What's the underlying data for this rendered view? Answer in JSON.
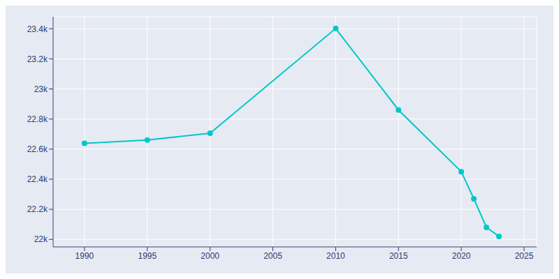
{
  "chart_data": {
    "type": "line",
    "x": [
      1990,
      1995,
      2000,
      2010,
      2015,
      2020,
      2021,
      2022,
      2023
    ],
    "values": [
      22638,
      22660,
      22706,
      23402,
      22860,
      22450,
      22270,
      22080,
      22020
    ],
    "color": "#00c8c8",
    "marker": "circle",
    "xlim": [
      1987.5,
      2026
    ],
    "xticks": [
      1990,
      1995,
      2000,
      2005,
      2010,
      2015,
      2020,
      2025
    ],
    "ylim": [
      21950,
      23480
    ],
    "yticks": [
      {
        "value": 22000,
        "label": "22k"
      },
      {
        "value": 22200,
        "label": "22.2k"
      },
      {
        "value": 22400,
        "label": "22.4k"
      },
      {
        "value": 22600,
        "label": "22.6k"
      },
      {
        "value": 22800,
        "label": "22.8k"
      },
      {
        "value": 23000,
        "label": "23k"
      },
      {
        "value": 23200,
        "label": "23.2k"
      },
      {
        "value": 23400,
        "label": "23.4k"
      }
    ],
    "grid": true
  }
}
